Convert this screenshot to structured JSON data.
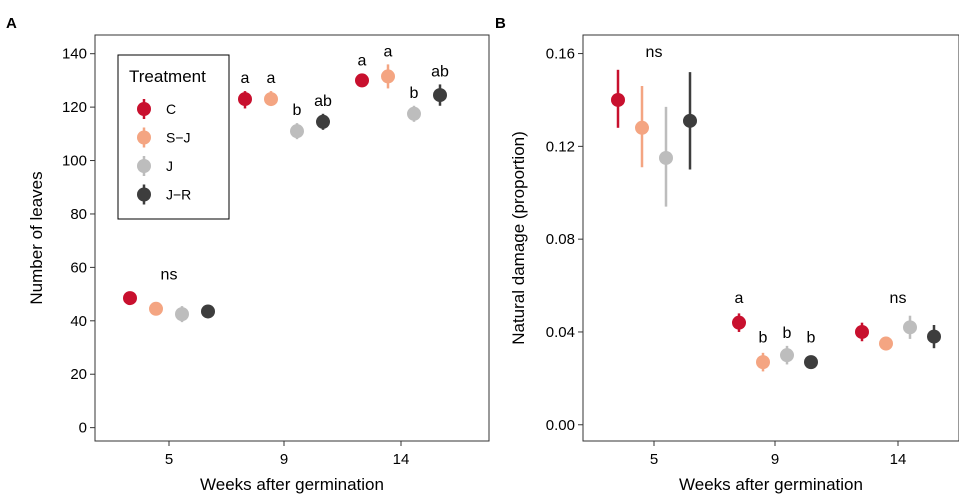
{
  "colors": {
    "C": "#c8102e",
    "S-J": "#f4a582",
    "J": "#bdbdbd",
    "J-R": "#3d3d3d"
  },
  "legend": {
    "title": "Treatment",
    "items": [
      "C",
      "S−J",
      "J",
      "J−R"
    ]
  },
  "chart_data": [
    {
      "panel": "A",
      "type": "scatter",
      "xlabel": "Weeks after germination",
      "ylabel": "Number of leaves",
      "categories": [
        "5",
        "9",
        "14"
      ],
      "ylim": [
        -5,
        147
      ],
      "yticks": [
        0,
        20,
        40,
        60,
        80,
        100,
        120,
        140
      ],
      "ytick_labels": [
        "0",
        "20",
        "40",
        "60",
        "80",
        "100",
        "120",
        "140"
      ],
      "grid": false,
      "legend_position": "top-left",
      "series": [
        {
          "name": "C",
          "color_key": "C",
          "values": [
            48.5,
            123,
            130
          ],
          "lower": [
            46.5,
            119.5,
            127.5
          ],
          "upper": [
            50.5,
            126,
            132.5
          ]
        },
        {
          "name": "S−J",
          "color_key": "S-J",
          "values": [
            44.5,
            123,
            131.5
          ],
          "lower": [
            42.5,
            120.5,
            127
          ],
          "upper": [
            46.5,
            126,
            136
          ]
        },
        {
          "name": "J",
          "color_key": "J",
          "values": [
            42.5,
            111,
            117.5
          ],
          "lower": [
            39.5,
            108,
            114.5
          ],
          "upper": [
            45.5,
            114,
            120.5
          ]
        },
        {
          "name": "J−R",
          "color_key": "J-R",
          "values": [
            43.5,
            114.5,
            124.5
          ],
          "lower": [
            41.5,
            111.5,
            120.5
          ],
          "upper": [
            45.5,
            117.5,
            128.5
          ]
        }
      ],
      "annotations": [
        {
          "category": "5",
          "series": null,
          "text": "ns",
          "y": 55.5
        },
        {
          "category": "9",
          "series": "C",
          "text": "a",
          "y": 129
        },
        {
          "category": "9",
          "series": "S−J",
          "text": "a",
          "y": 129
        },
        {
          "category": "9",
          "series": "J",
          "text": "b",
          "y": 117
        },
        {
          "category": "9",
          "series": "J−R",
          "text": "ab",
          "y": 120.5
        },
        {
          "category": "14",
          "series": "C",
          "text": "a",
          "y": 135.5
        },
        {
          "category": "14",
          "series": "S−J",
          "text": "a",
          "y": 139
        },
        {
          "category": "14",
          "series": "J",
          "text": "b",
          "y": 123.5
        },
        {
          "category": "14",
          "series": "J−R",
          "text": "ab",
          "y": 131.5
        }
      ]
    },
    {
      "panel": "B",
      "type": "scatter",
      "xlabel": "Weeks after germination",
      "ylabel": "Natural damage (proportion)",
      "categories": [
        "5",
        "9",
        "14"
      ],
      "ylim": [
        -0.007,
        0.168
      ],
      "yticks": [
        0,
        0.04,
        0.08,
        0.12,
        0.16
      ],
      "ytick_labels": [
        "0.00",
        "0.04",
        "0.08",
        "0.12",
        "0.16"
      ],
      "grid": false,
      "series": [
        {
          "name": "C",
          "color_key": "C",
          "values": [
            0.14,
            0.044,
            0.04
          ],
          "lower": [
            0.128,
            0.04,
            0.036
          ],
          "upper": [
            0.153,
            0.048,
            0.044
          ]
        },
        {
          "name": "S−J",
          "color_key": "S-J",
          "values": [
            0.128,
            0.027,
            0.035
          ],
          "lower": [
            0.111,
            0.023,
            0.032
          ],
          "upper": [
            0.146,
            0.031,
            0.038
          ]
        },
        {
          "name": "J",
          "color_key": "J",
          "values": [
            0.115,
            0.03,
            0.042
          ],
          "lower": [
            0.094,
            0.026,
            0.037
          ],
          "upper": [
            0.137,
            0.034,
            0.047
          ]
        },
        {
          "name": "J−R",
          "color_key": "J-R",
          "values": [
            0.131,
            0.027,
            0.038
          ],
          "lower": [
            0.11,
            0.025,
            0.033
          ],
          "upper": [
            0.152,
            0.029,
            0.043
          ]
        }
      ],
      "annotations": [
        {
          "category": "5",
          "series": null,
          "text": "ns",
          "y": 0.1585
        },
        {
          "category": "9",
          "series": "C",
          "text": "a",
          "y": 0.0525
        },
        {
          "category": "9",
          "series": "S−J",
          "text": "b",
          "y": 0.0355
        },
        {
          "category": "9",
          "series": "J",
          "text": "b",
          "y": 0.0375
        },
        {
          "category": "9",
          "series": "J−R",
          "text": "b",
          "y": 0.0355
        },
        {
          "category": "14",
          "series": null,
          "text": "ns",
          "y": 0.0525
        }
      ]
    }
  ]
}
